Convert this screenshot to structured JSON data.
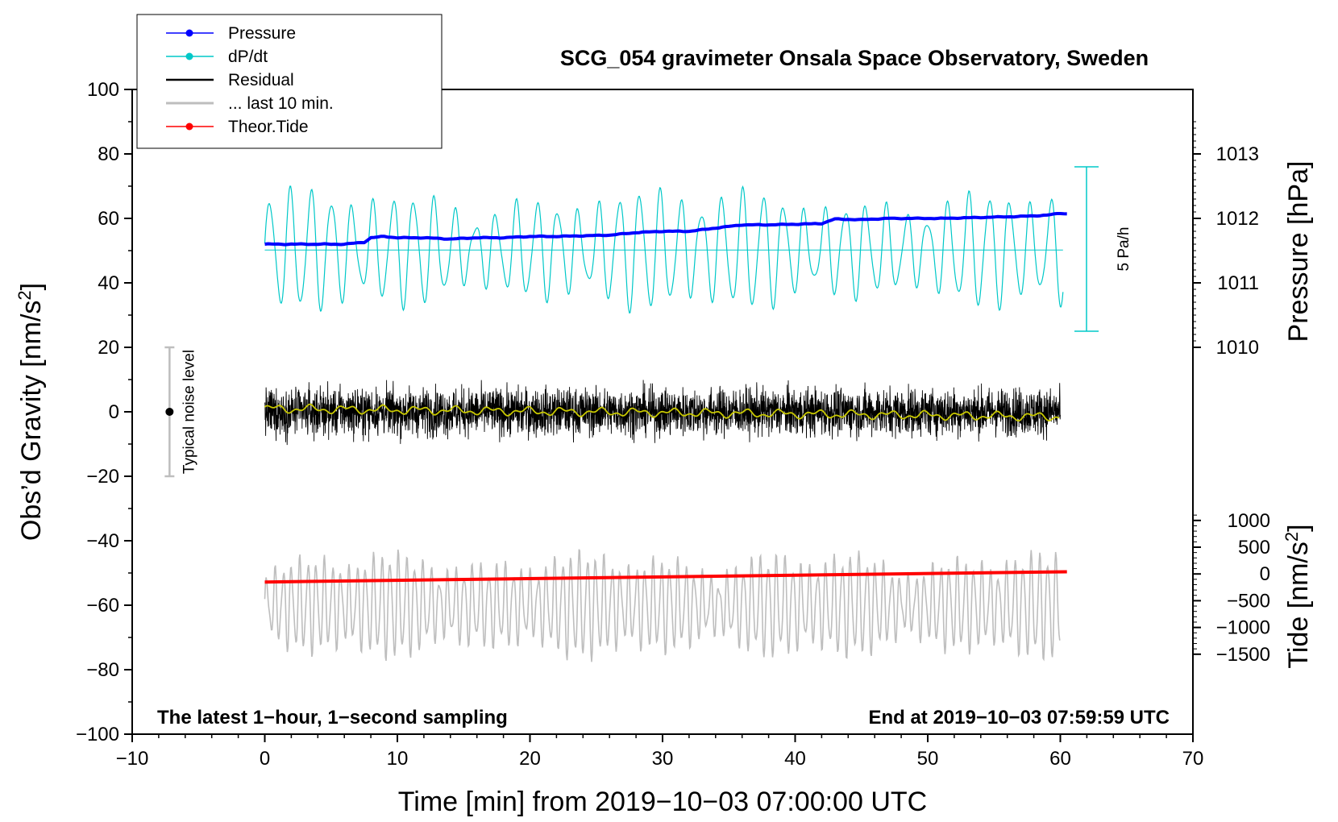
{
  "chart_data": {
    "type": "line",
    "title": "SCG_054 gravimeter Onsala Space Observatory, Sweden",
    "xlabel": "Time [min] from 2019−10−03 07:00:00 UTC",
    "ylabel": "Obs’d Gravity [nm/s²]",
    "ylabel_text": "Obs’d Gravity [nm/s",
    "ylabel_sup": "2",
    "ylabel_close": "]",
    "xlim": [
      -10,
      70
    ],
    "ylim": [
      -100,
      100
    ],
    "xticks": [
      -10,
      0,
      10,
      20,
      30,
      40,
      50,
      60,
      70
    ],
    "xtick_labels": [
      "−10",
      "0",
      "10",
      "20",
      "30",
      "40",
      "50",
      "60",
      "70"
    ],
    "yticks": [
      -100,
      -80,
      -60,
      -40,
      -20,
      0,
      20,
      40,
      60,
      80,
      100
    ],
    "ytick_labels": [
      "−100",
      "−80",
      "−60",
      "−40",
      "−20",
      "0",
      "20",
      "40",
      "60",
      "80",
      "100"
    ],
    "pressure_axis": {
      "label": "Pressure [hPa]",
      "ticks": [
        1010,
        1011,
        1012,
        1013
      ],
      "tick_labels": [
        "1010",
        "1011",
        "1012",
        "1013"
      ],
      "gravity_at_1010": 20,
      "gravity_per_hPa": 20
    },
    "tide_axis": {
      "label_text": "Tide [nm/s",
      "label_sup": "2",
      "label_close": "]",
      "ticks": [
        -1500,
        -1000,
        -500,
        0,
        500,
        1000
      ],
      "tick_labels": [
        "−1500",
        "−1000",
        "−500",
        "0",
        "500",
        "1000"
      ],
      "gravity_at_0": -50.3,
      "gravity_per_unit": 0.0166
    },
    "legend": [
      {
        "name": "Pressure",
        "color": "#0000ff",
        "marker": true
      },
      {
        "name": "dP/dt",
        "color": "#00c8c8",
        "marker": true
      },
      {
        "name": "Residual",
        "color": "#000000",
        "marker": false
      },
      {
        "name": "... last 10 min.",
        "color": "#bebebe",
        "marker": false
      },
      {
        "name": "Theor.Tide",
        "color": "#ff0000",
        "marker": true
      }
    ],
    "series": [
      {
        "name": "Pressure",
        "color": "#0000ff",
        "unit": "hPa",
        "x": [
          0,
          2,
          4,
          6,
          7.5,
          8,
          9,
          10,
          12,
          14,
          16,
          18,
          20,
          22,
          24,
          26,
          28,
          30,
          32,
          34,
          36,
          38,
          40,
          42,
          43,
          45,
          47,
          49,
          51,
          53,
          55,
          57,
          59,
          60,
          60.5
        ],
        "values": [
          1011.6,
          1011.6,
          1011.6,
          1011.6,
          1011.63,
          1011.7,
          1011.72,
          1011.7,
          1011.7,
          1011.68,
          1011.7,
          1011.7,
          1011.72,
          1011.72,
          1011.73,
          1011.74,
          1011.78,
          1011.8,
          1011.8,
          1011.85,
          1011.9,
          1011.9,
          1011.91,
          1011.92,
          1011.99,
          1011.98,
          1012.0,
          1012.0,
          1012.0,
          1012.01,
          1012.02,
          1012.03,
          1012.05,
          1012.08,
          1012.07
        ]
      },
      {
        "name": "dP/dt",
        "color": "#00c8c8",
        "baseline_gravity": 50.2,
        "scale_label": "5 Pa/h",
        "scale_range_gravity": [
          25,
          76
        ]
      },
      {
        "name": "Residual",
        "color": "#000000",
        "mean_gravity": 0,
        "amplitude_gravity": 22
      },
      {
        "name": "Residual smoothed",
        "color": "#c8c800",
        "x": [
          0,
          60
        ],
        "values": [
          1,
          -1.5
        ]
      },
      {
        "name": "... last 10 min.",
        "color": "#bebebe",
        "offset_gravity": -60,
        "amplitude_gravity": 20
      },
      {
        "name": "Theor.Tide",
        "color": "#ff0000",
        "unit": "nm/s²",
        "x": [
          0,
          60.5
        ],
        "values": [
          -150,
          40
        ]
      }
    ],
    "noise_bar": {
      "label": "Typical noise level",
      "x": -7,
      "y": 0,
      "range": [
        -20,
        20
      ]
    },
    "annotations": {
      "left": "The latest 1−hour, 1−second sampling",
      "right": "End at 2019−10−03 07:59:59 UTC"
    }
  }
}
